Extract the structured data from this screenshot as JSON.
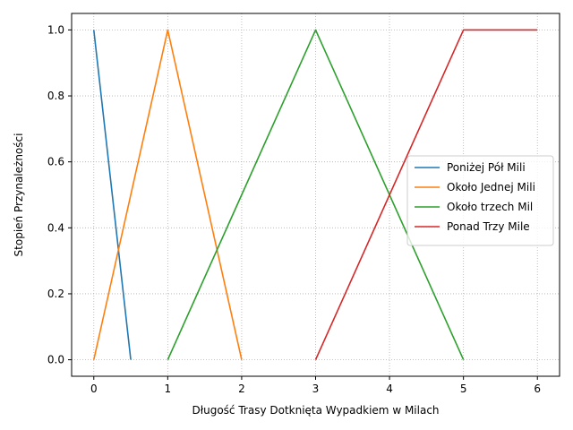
{
  "chart_data": {
    "type": "line",
    "xlabel": "Długość Trasy Dotknięta Wypadkiem w Milach",
    "ylabel": "Stopień Przynależności",
    "xlim": [
      -0.3,
      6.3
    ],
    "ylim": [
      -0.05,
      1.05
    ],
    "x_ticks": [
      0,
      1,
      2,
      3,
      4,
      5,
      6
    ],
    "x_tick_labels": [
      "0",
      "1",
      "2",
      "3",
      "4",
      "5",
      "6"
    ],
    "y_ticks": [
      0.0,
      0.2,
      0.4,
      0.6,
      0.8,
      1.0
    ],
    "y_tick_labels": [
      "0.0",
      "0.2",
      "0.4",
      "0.6",
      "0.8",
      "1.0"
    ],
    "grid": true,
    "legend_position": "center-right",
    "series": [
      {
        "name": "Poniżej Pół Mili",
        "color": "#1f77b4",
        "x": [
          0,
          0.5
        ],
        "y": [
          1.0,
          0.0
        ]
      },
      {
        "name": "Około Jednej Mili",
        "color": "#ff7f0e",
        "x": [
          0,
          1,
          2
        ],
        "y": [
          0.0,
          1.0,
          0.0
        ]
      },
      {
        "name": "Około trzech Mil",
        "color": "#2ca02c",
        "x": [
          1,
          3,
          5
        ],
        "y": [
          0.0,
          1.0,
          0.0
        ]
      },
      {
        "name": "Ponad Trzy Mile",
        "color": "#d62728",
        "x": [
          3,
          5,
          6
        ],
        "y": [
          0.0,
          1.0,
          1.0
        ]
      }
    ]
  }
}
